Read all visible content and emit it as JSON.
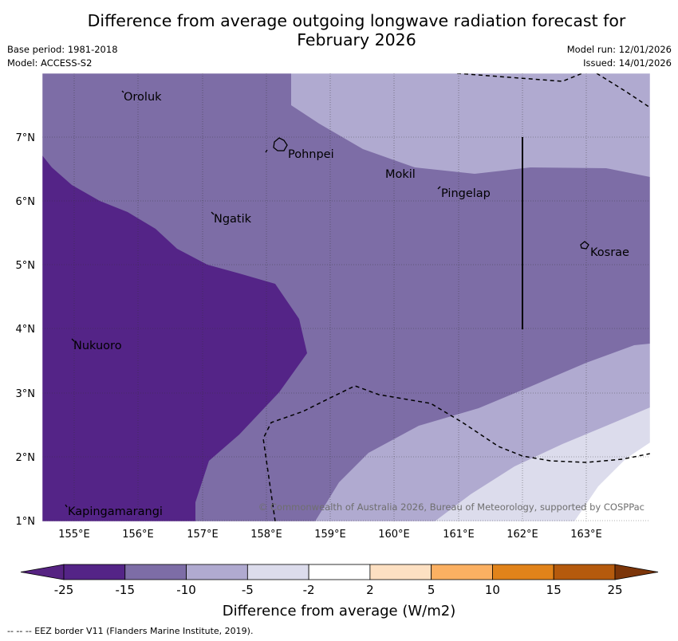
{
  "title": {
    "line1": "Difference from average outgoing longwave radiation forecast for",
    "line2": "February 2026"
  },
  "meta_left": {
    "base_period": "Base period: 1981-2018",
    "model": "Model: ACCESS-S2"
  },
  "meta_right": {
    "model_run": "Model run: 12/01/2026",
    "issued": "Issued: 14/01/2026"
  },
  "axes": {
    "lon_labels": [
      "155°E",
      "156°E",
      "157°E",
      "158°E",
      "159°E",
      "160°E",
      "161°E",
      "162°E",
      "163°E"
    ],
    "lat_labels": [
      "7°N",
      "6°N",
      "5°N",
      "4°N",
      "3°N",
      "2°N",
      "1°N"
    ]
  },
  "places": [
    {
      "name": "Oroluk"
    },
    {
      "name": "Pohnpei"
    },
    {
      "name": "Mokil"
    },
    {
      "name": "Pingelap"
    },
    {
      "name": "Ngatik"
    },
    {
      "name": "Kosrae"
    },
    {
      "name": "Nukuoro"
    },
    {
      "name": "Kapingamarangi"
    }
  ],
  "copyright": "© Commonwealth of Australia 2026, Bureau of Meteorology, supported by COSPPac",
  "colorbar": {
    "ticks": [
      "-25",
      "-15",
      "-10",
      "-5",
      "-2",
      "2",
      "5",
      "10",
      "15",
      "25"
    ],
    "colors": [
      "#562382",
      "#542487",
      "#7d6da6",
      "#b0aad0",
      "#dcdcec",
      "#ffffff",
      "#fde0c2",
      "#fbb062",
      "#e1831a",
      "#b55a0d",
      "#7c3509"
    ],
    "label": "Difference from average (W/m2)"
  },
  "footer": "--  --  -- EEZ border V11 (Flanders Marine Institute, 2019)."
}
